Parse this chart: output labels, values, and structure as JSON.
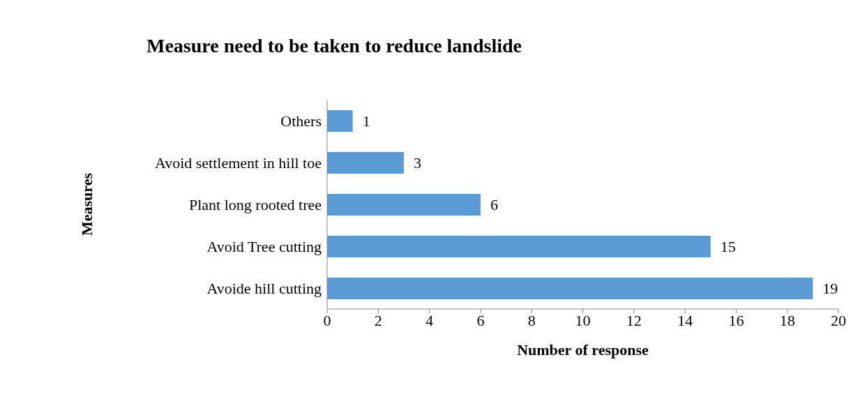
{
  "chart_data": {
    "type": "bar",
    "orientation": "horizontal",
    "title": "Measure need to be taken to reduce landslide",
    "xlabel": "Number of response",
    "ylabel": "Measures",
    "categories": [
      "Others",
      "Avoid settlement in hill toe",
      "Plant long rooted tree",
      "Avoid Tree cutting",
      "Avoide hill cutting"
    ],
    "values": [
      1,
      3,
      6,
      15,
      19
    ],
    "color": "#5b9bd5",
    "xlim": [
      0,
      20
    ],
    "xticks": [
      0,
      2,
      4,
      6,
      8,
      10,
      12,
      14,
      16,
      18,
      20
    ],
    "grid": false,
    "data_labels": true
  }
}
